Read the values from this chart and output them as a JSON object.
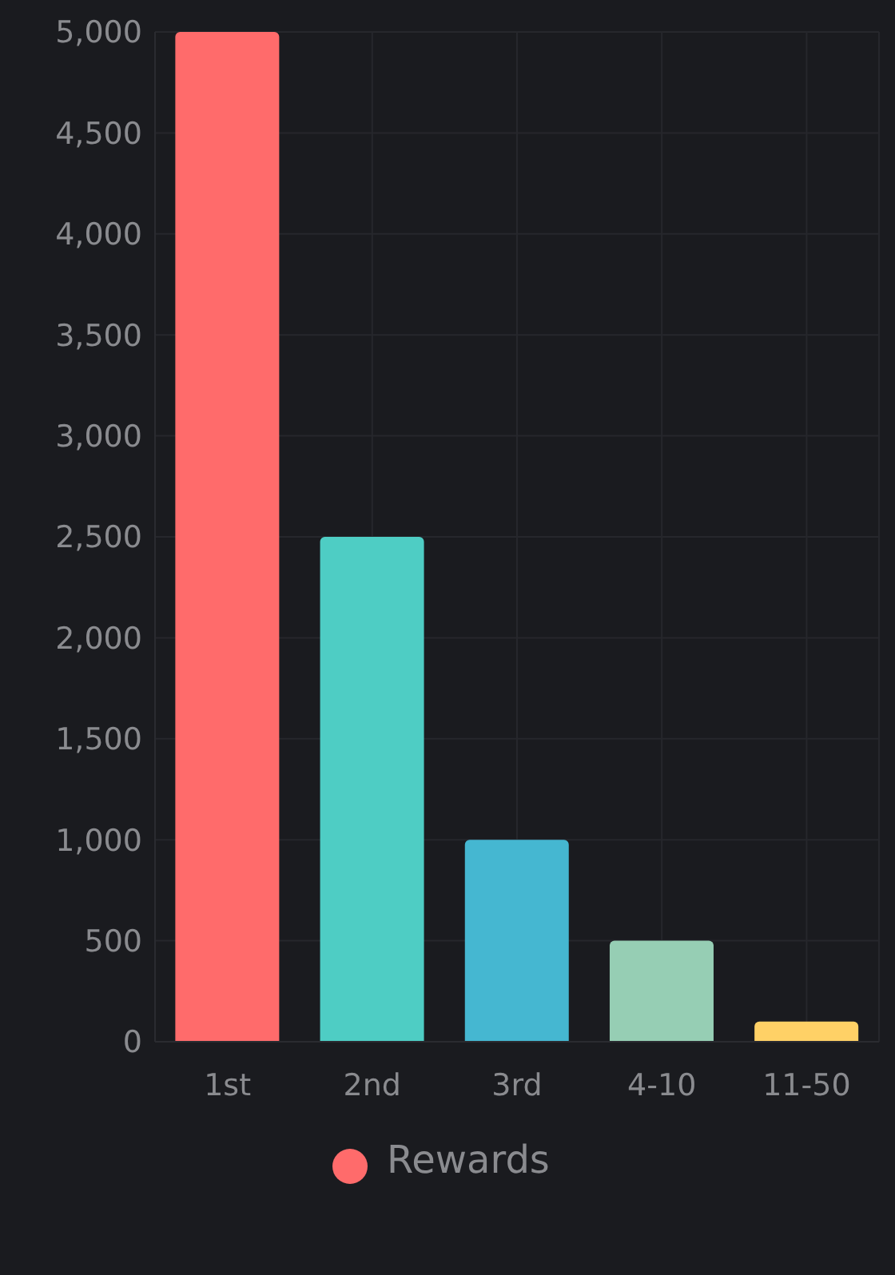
{
  "chart_data": {
    "type": "bar",
    "categories": [
      "1st",
      "2nd",
      "3rd",
      "4-10",
      "11-50"
    ],
    "series": [
      {
        "name": "Rewards",
        "values": [
          5000,
          2500,
          1000,
          500,
          100
        ]
      }
    ],
    "colors": [
      "#ff6b6b",
      "#4ecdc4",
      "#45b7d1",
      "#96ceb4",
      "#ffd166"
    ],
    "ylim": [
      0,
      5000
    ],
    "yticks": [
      0,
      500,
      {
        "value": 1000,
        "label": "1,000"
      },
      {
        "value": 1500,
        "label": "1,500"
      },
      {
        "value": 2000,
        "label": "2,000"
      },
      {
        "value": 2500,
        "label": "2,500"
      },
      {
        "value": 3000,
        "label": "3,000"
      },
      {
        "value": 3500,
        "label": "3,500"
      },
      {
        "value": 4000,
        "label": "4,000"
      },
      {
        "value": 4500,
        "label": "4,500"
      },
      {
        "value": 5000,
        "label": "5,000"
      }
    ],
    "grid": true,
    "legend": "bottom"
  }
}
